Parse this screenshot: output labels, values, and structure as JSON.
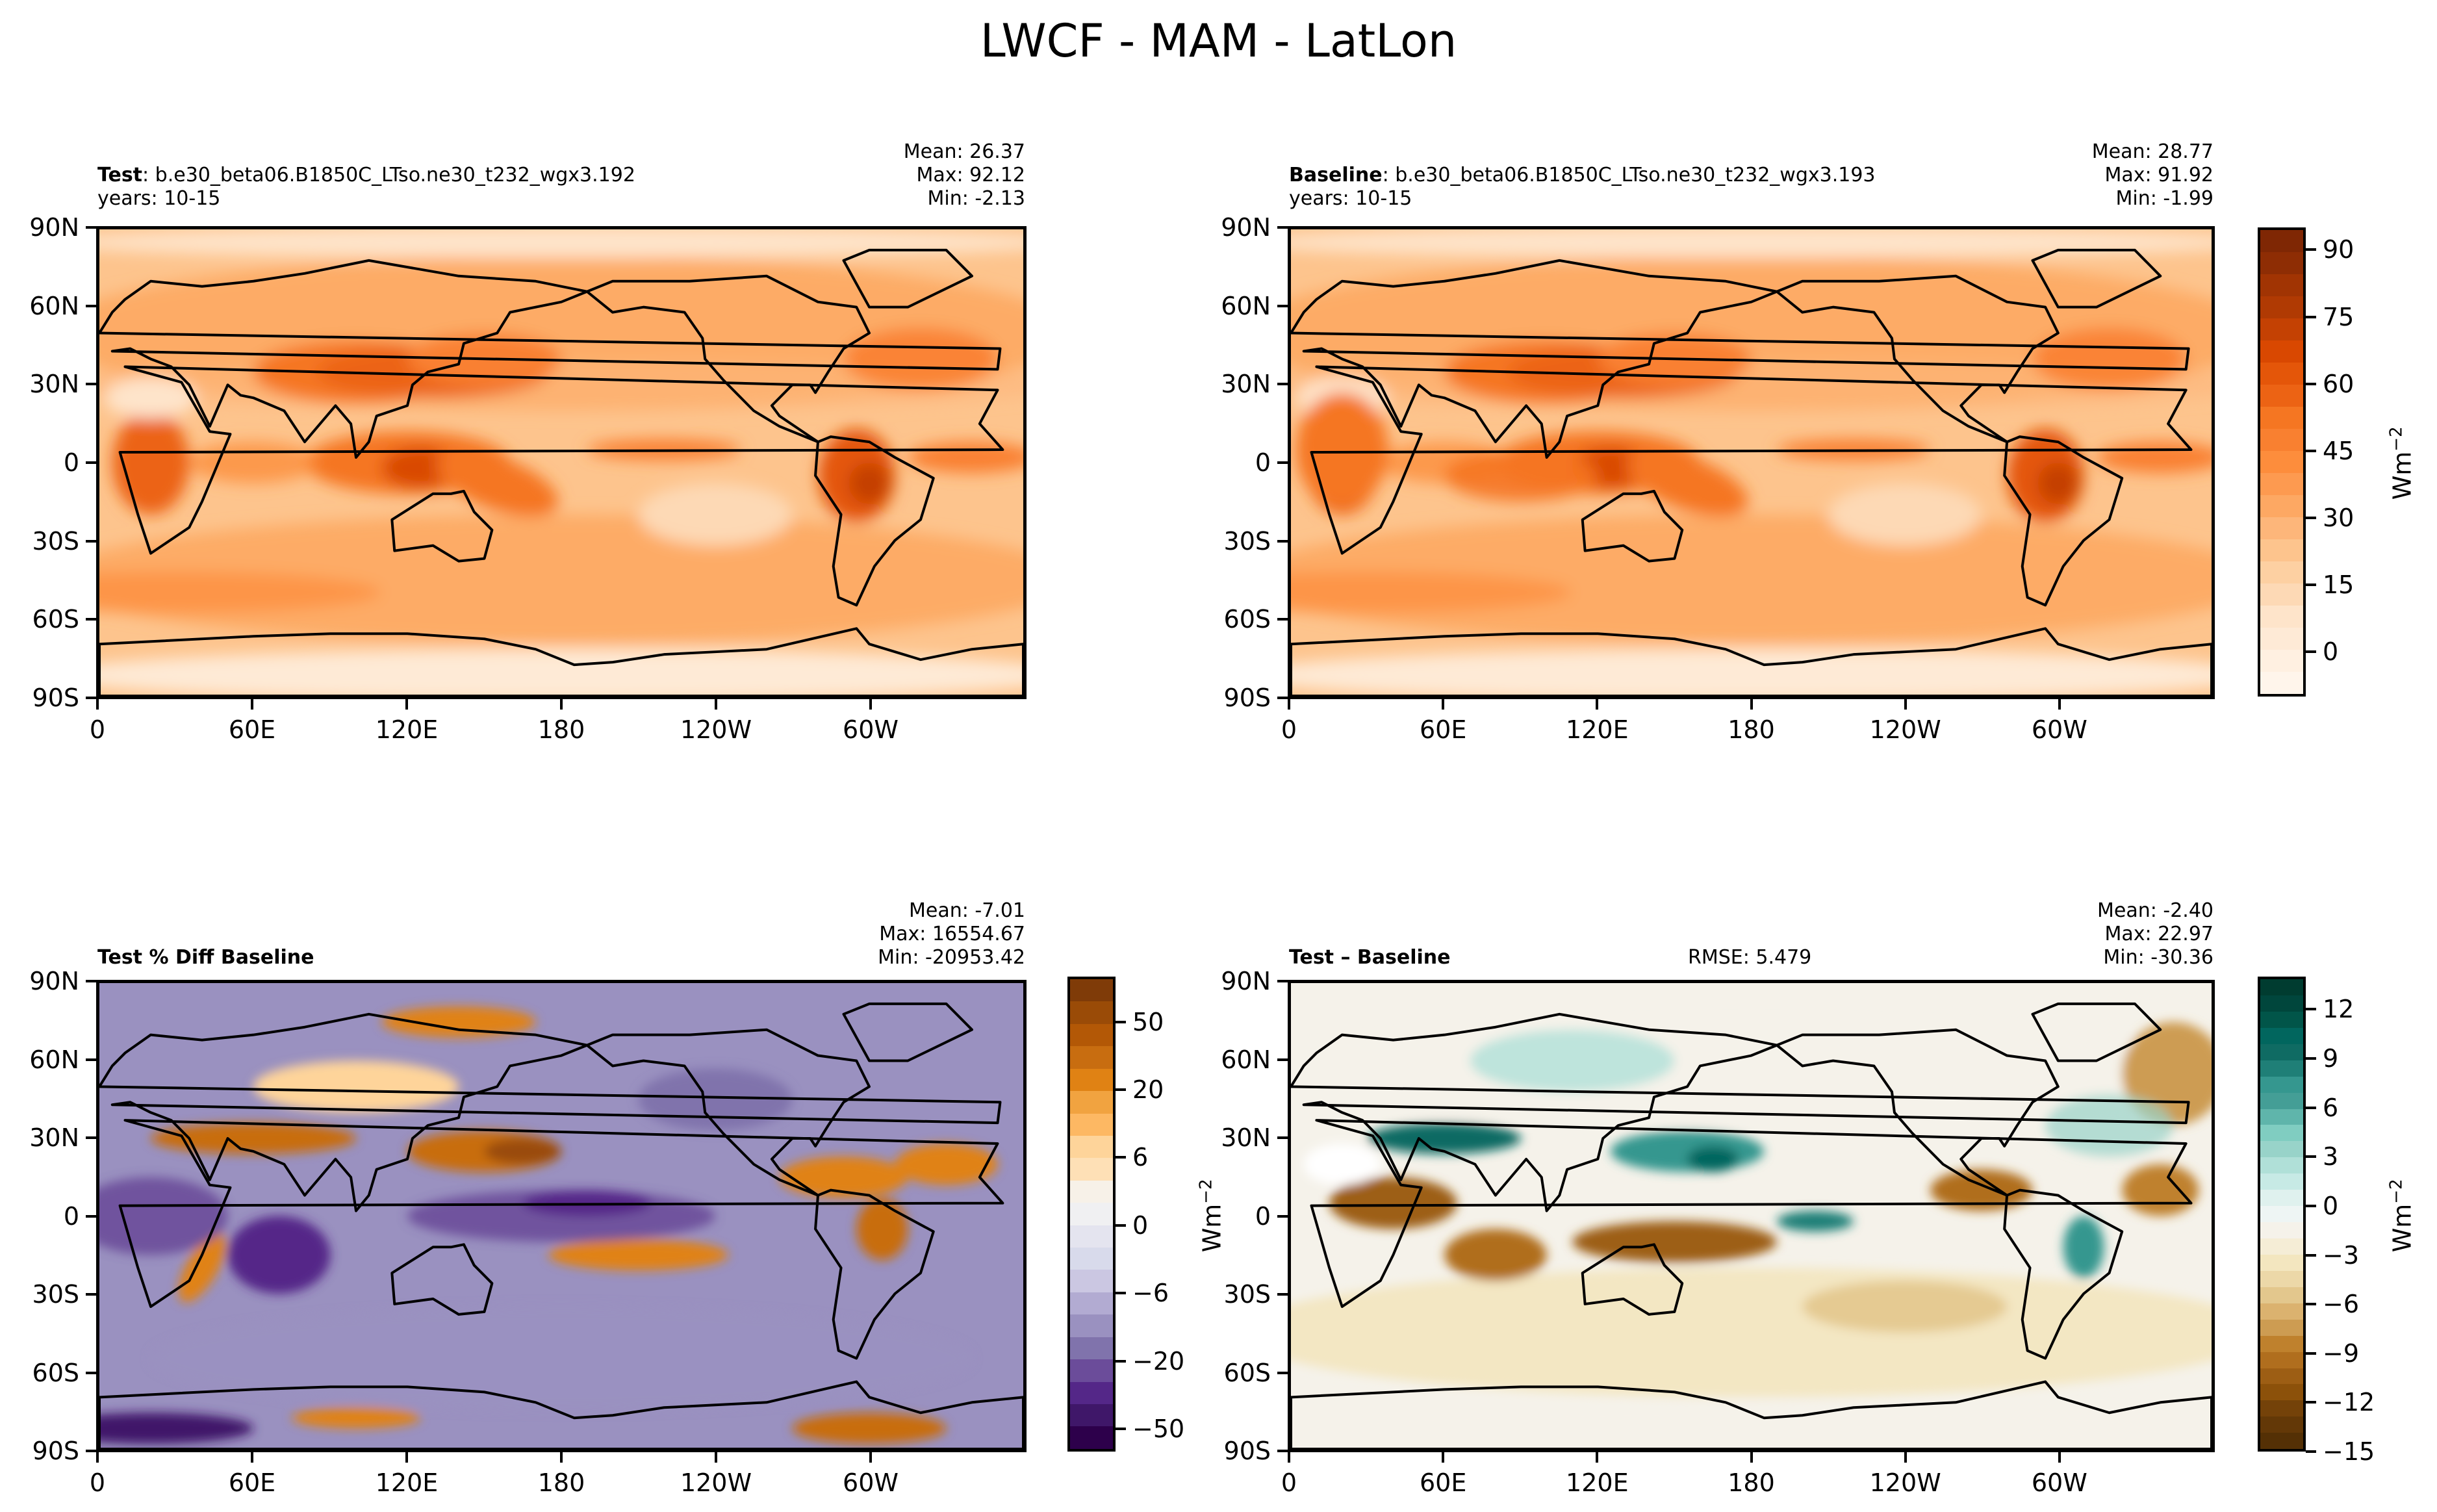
{
  "figure": {
    "title": "LWCF - MAM - LatLon"
  },
  "chart_data": [
    {
      "type": "heatmap",
      "panel": "test",
      "title_bold": "Test",
      "title_rest": ": b.e30_beta06.B1850C_LTso.ne30_t232_wgx3.192",
      "subtitle": "years: 10-15",
      "stats": {
        "mean": "Mean: 26.37",
        "max": "Max: 92.12",
        "min": "Min: -2.13"
      },
      "x_ticks": [
        "0",
        "60E",
        "120E",
        "180",
        "120W",
        "60W"
      ],
      "y_ticks": [
        "90N",
        "60N",
        "30N",
        "0",
        "30S",
        "60S",
        "90S"
      ],
      "xlim": [
        0,
        360
      ],
      "ylim": [
        -90,
        90
      ],
      "colormap": "Oranges",
      "levels_range": [
        -10,
        95
      ],
      "level_step": 5,
      "colorbar_shared_with": "baseline"
    },
    {
      "type": "heatmap",
      "panel": "baseline",
      "title_bold": "Baseline",
      "title_rest": ": b.e30_beta06.B1850C_LTso.ne30_t232_wgx3.193",
      "subtitle": "years: 10-15",
      "stats": {
        "mean": "Mean: 28.77",
        "max": "Max: 91.92",
        "min": "Min: -1.99"
      },
      "x_ticks": [
        "0",
        "60E",
        "120E",
        "180",
        "120W",
        "60W"
      ],
      "y_ticks": [
        "90N",
        "60N",
        "30N",
        "0",
        "30S",
        "60S",
        "90S"
      ],
      "xlim": [
        0,
        360
      ],
      "ylim": [
        -90,
        90
      ],
      "colormap": "Oranges",
      "colorbar": {
        "ticks": [
          "90",
          "75",
          "60",
          "45",
          "30",
          "15",
          "0"
        ],
        "tick_values": [
          90,
          75,
          60,
          45,
          30,
          15,
          0
        ],
        "range": [
          -10,
          95
        ],
        "label": "Wm",
        "label_sup": "−2"
      }
    },
    {
      "type": "heatmap",
      "panel": "pct_diff",
      "title_bold": "Test % Diff Baseline",
      "title_rest": "",
      "subtitle": "",
      "stats": {
        "mean": "Mean: -7.01",
        "max": "Max: 16554.67",
        "min": "Min: -20953.42"
      },
      "x_ticks": [
        "0",
        "60E",
        "120E",
        "180",
        "120W",
        "60W"
      ],
      "y_ticks": [
        "90N",
        "60N",
        "30N",
        "0",
        "30S",
        "60S",
        "90S"
      ],
      "xlim": [
        0,
        360
      ],
      "ylim": [
        -90,
        90
      ],
      "colormap": "PuOr_r",
      "colorbar": {
        "ticks": [
          "50",
          "20",
          "6",
          "0",
          "−6",
          "−20",
          "−50"
        ],
        "tick_positions_index": [
          2,
          5,
          8,
          11,
          14,
          17,
          20
        ],
        "n_levels": 22,
        "label": "Wm",
        "label_sup": "−2"
      }
    },
    {
      "type": "heatmap",
      "panel": "diff",
      "title_bold": "Test – Baseline",
      "title_rest": "",
      "subtitle": "",
      "rmse": "RMSE: 5.479",
      "stats": {
        "mean": "Mean: -2.40",
        "max": "Max: 22.97",
        "min": "Min: -30.36"
      },
      "x_ticks": [
        "0",
        "60E",
        "120E",
        "180",
        "120W",
        "60W"
      ],
      "y_ticks": [
        "90N",
        "60N",
        "30N",
        "0",
        "30S",
        "60S",
        "90S"
      ],
      "xlim": [
        0,
        360
      ],
      "ylim": [
        -90,
        90
      ],
      "colormap": "BrBG",
      "colorbar": {
        "ticks": [
          "12",
          "9",
          "6",
          "3",
          "0",
          "−3",
          "−6",
          "−9",
          "−12",
          "−15"
        ],
        "tick_values": [
          12,
          9,
          6,
          3,
          0,
          -3,
          -6,
          -9,
          -12,
          -15
        ],
        "range": [
          -15,
          14
        ],
        "label": "Wm",
        "label_sup": "−2"
      }
    }
  ],
  "colors": {
    "oranges": [
      "#fff5eb",
      "#fff0e1",
      "#feead6",
      "#fee4ca",
      "#fdd9b5",
      "#fdd0a2",
      "#fdc48d",
      "#fdb67a",
      "#fda863",
      "#fd9a50",
      "#fd8d3c",
      "#f98030",
      "#f57622",
      "#ec6314",
      "#e45609",
      "#d94801",
      "#c44103",
      "#b03a03",
      "#a13403",
      "#8e2d04",
      "#7f2704"
    ],
    "puor": [
      "#2d004b",
      "#3f1769",
      "#542788",
      "#6b4c9a",
      "#8073ac",
      "#9a91c0",
      "#b2abd2",
      "#cbc7e2",
      "#d8daeb",
      "#e4e4ef",
      "#f0f0f2",
      "#f7f1e8",
      "#fee0b6",
      "#fed49a",
      "#fdb863",
      "#f1a340",
      "#e08214",
      "#c86d10",
      "#b35806",
      "#9a4b07",
      "#7f3b08"
    ],
    "brbg": [
      "#543005",
      "#633807",
      "#744209",
      "#8c510a",
      "#9d5e14",
      "#b06e1e",
      "#bf812d",
      "#cd9c52",
      "#dbb26f",
      "#e3c78d",
      "#ecd8a8",
      "#f3e6bf",
      "#f5edd6",
      "#f5f2ea",
      "#eef5f4",
      "#dff1ee",
      "#c7eae5",
      "#b0e0d8",
      "#98d3c9",
      "#80cdc1",
      "#5fb5ab",
      "#449e96",
      "#35978f",
      "#1f7f77",
      "#0f6b63",
      "#01665e",
      "#015549",
      "#00463c",
      "#003c30"
    ]
  }
}
